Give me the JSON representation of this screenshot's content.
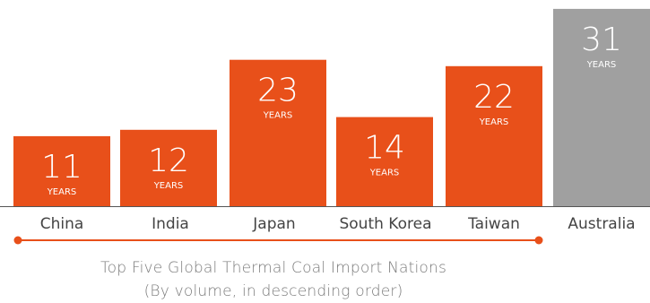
{
  "chart_data": {
    "type": "bar",
    "categories": [
      "China",
      "India",
      "Japan",
      "South Korea",
      "Taiwan",
      "Australia"
    ],
    "values": [
      11,
      12,
      23,
      14,
      22,
      31
    ],
    "value_unit_label": "YEARS",
    "bar_colors": [
      "#e8501a",
      "#e8501a",
      "#e8501a",
      "#e8501a",
      "#e8501a",
      "#a0a0a0"
    ],
    "bracket": {
      "from_category": "China",
      "to_category": "Taiwan",
      "color": "#e8501a"
    },
    "caption_line1": "Top Five Global Thermal Coal Import Nations",
    "caption_line2": "(By volume, in descending order)"
  },
  "colors": {
    "accent": "#e8501a",
    "highlight": "#a0a0a0",
    "label_text": "#444444",
    "caption_text": "#7a7a7a"
  }
}
